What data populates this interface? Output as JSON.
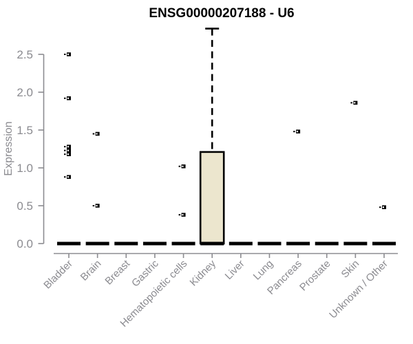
{
  "chart_data": {
    "type": "boxplot",
    "title": "ENSG00000207188 - U6",
    "xlabel": "",
    "ylabel": "Expression",
    "ylim": [
      0,
      2.9
    ],
    "yticks": [
      0.0,
      0.5,
      1.0,
      1.5,
      2.0,
      2.5
    ],
    "grid": false,
    "legend": "none",
    "categories": [
      "Bladder",
      "Brain",
      "Breast",
      "Gastric",
      "Hematopoietic cells",
      "Kidney",
      "Liver",
      "Lung",
      "Pancreas",
      "Prostate",
      "Skin",
      "Unknown / Other"
    ],
    "series": [
      {
        "category": "Bladder",
        "q1": 0,
        "median": 0,
        "q3": 0,
        "whisker_low": 0,
        "whisker_high": 0,
        "outliers": [
          2.5,
          1.92,
          1.28,
          1.23,
          1.18,
          0.88
        ]
      },
      {
        "category": "Brain",
        "q1": 0,
        "median": 0,
        "q3": 0,
        "whisker_low": 0,
        "whisker_high": 0,
        "outliers": [
          1.45,
          0.5
        ]
      },
      {
        "category": "Breast",
        "q1": 0,
        "median": 0,
        "q3": 0,
        "whisker_low": 0,
        "whisker_high": 0,
        "outliers": []
      },
      {
        "category": "Gastric",
        "q1": 0,
        "median": 0,
        "q3": 0,
        "whisker_low": 0,
        "whisker_high": 0,
        "outliers": []
      },
      {
        "category": "Hematopoietic cells",
        "q1": 0,
        "median": 0,
        "q3": 0,
        "whisker_low": 0,
        "whisker_high": 0,
        "outliers": [
          1.02,
          0.38
        ]
      },
      {
        "category": "Kidney",
        "q1": 0,
        "median": 0,
        "q3": 1.21,
        "whisker_low": 0,
        "whisker_high": 2.84,
        "outliers": []
      },
      {
        "category": "Liver",
        "q1": 0,
        "median": 0,
        "q3": 0,
        "whisker_low": 0,
        "whisker_high": 0,
        "outliers": []
      },
      {
        "category": "Lung",
        "q1": 0,
        "median": 0,
        "q3": 0,
        "whisker_low": 0,
        "whisker_high": 0,
        "outliers": []
      },
      {
        "category": "Pancreas",
        "q1": 0,
        "median": 0,
        "q3": 0,
        "whisker_low": 0,
        "whisker_high": 0,
        "outliers": [
          1.48
        ]
      },
      {
        "category": "Prostate",
        "q1": 0,
        "median": 0,
        "q3": 0,
        "whisker_low": 0,
        "whisker_high": 0,
        "outliers": []
      },
      {
        "category": "Skin",
        "q1": 0,
        "median": 0,
        "q3": 0,
        "whisker_low": 0,
        "whisker_high": 0,
        "outliers": [
          1.86
        ]
      },
      {
        "category": "Unknown / Other",
        "q1": 0,
        "median": 0,
        "q3": 0,
        "whisker_low": 0,
        "whisker_high": 0,
        "outliers": [
          0.48
        ]
      }
    ],
    "colors": {
      "box_fill": "#ece6ce",
      "box_stroke": "#000000",
      "outlier": "#000000",
      "axis": "#8b8b90",
      "tick_label": "#8b8b90",
      "title": "#000000"
    }
  }
}
